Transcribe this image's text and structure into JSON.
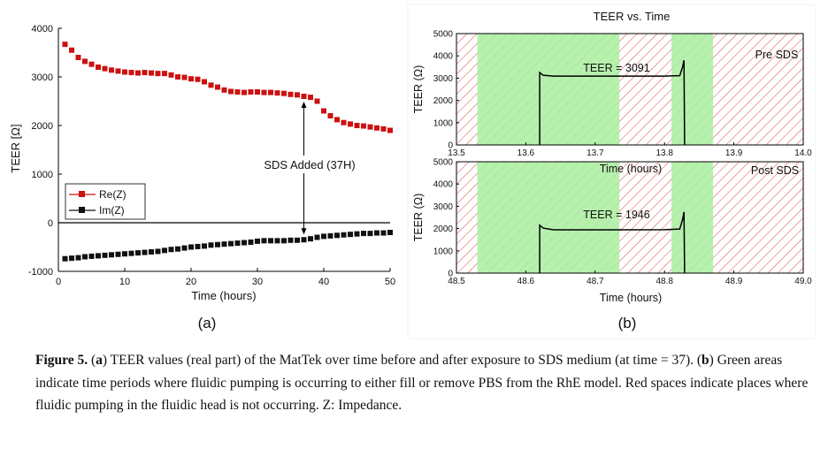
{
  "figure": {
    "panel_a_label": "(a)",
    "panel_b_label": "(b)"
  },
  "caption": {
    "label": "Figure 5.",
    "p1": " (",
    "a": "a",
    "p2": ") TEER values (real part) of the MatTek over time before and after exposure to SDS medium (at time = 37). (",
    "b": "b",
    "p3": ") Green areas indicate time periods where fluidic pumping is occurring to either fill or remove PBS from the RhE model. Red spaces indicate places where fluidic pumping in the fluidic head is not occurring. Z: Impedance."
  },
  "chart_data": [
    {
      "type": "scatter",
      "panel": "a",
      "title": "",
      "xlabel": "Time (hours)",
      "ylabel": "TEER [Ω]",
      "xlim": [
        0,
        50
      ],
      "ylim": [
        -1000,
        4000
      ],
      "xticks": [
        "0",
        "10",
        "20",
        "30",
        "40",
        "50"
      ],
      "yticks": [
        "-1000",
        "0",
        "1000",
        "2000",
        "3000",
        "4000"
      ],
      "annotation": "SDS Added (37H)",
      "annotation_x": 37,
      "series": [
        {
          "name": "Re(Z)",
          "color": "#cc1111",
          "points": [
            [
              1,
              3670
            ],
            [
              2,
              3550
            ],
            [
              3,
              3400
            ],
            [
              4,
              3320
            ],
            [
              5,
              3260
            ],
            [
              6,
              3200
            ],
            [
              7,
              3170
            ],
            [
              8,
              3140
            ],
            [
              9,
              3120
            ],
            [
              10,
              3100
            ],
            [
              11,
              3090
            ],
            [
              12,
              3080
            ],
            [
              13,
              3090
            ],
            [
              14,
              3080
            ],
            [
              15,
              3070
            ],
            [
              16,
              3070
            ],
            [
              17,
              3040
            ],
            [
              18,
              3000
            ],
            [
              19,
              2990
            ],
            [
              20,
              2960
            ],
            [
              21,
              2950
            ],
            [
              22,
              2900
            ],
            [
              23,
              2830
            ],
            [
              24,
              2790
            ],
            [
              25,
              2730
            ],
            [
              26,
              2700
            ],
            [
              27,
              2690
            ],
            [
              28,
              2680
            ],
            [
              29,
              2690
            ],
            [
              30,
              2690
            ],
            [
              31,
              2680
            ],
            [
              32,
              2680
            ],
            [
              33,
              2670
            ],
            [
              34,
              2660
            ],
            [
              35,
              2640
            ],
            [
              36,
              2630
            ],
            [
              37,
              2600
            ],
            [
              38,
              2580
            ],
            [
              39,
              2500
            ],
            [
              40,
              2300
            ],
            [
              41,
              2200
            ],
            [
              42,
              2120
            ],
            [
              43,
              2060
            ],
            [
              44,
              2030
            ],
            [
              45,
              2000
            ],
            [
              46,
              1990
            ],
            [
              47,
              1970
            ],
            [
              48,
              1950
            ],
            [
              49,
              1930
            ],
            [
              50,
              1900
            ]
          ]
        },
        {
          "name": "Im(Z)",
          "color": "#111111",
          "points": [
            [
              1,
              -740
            ],
            [
              2,
              -730
            ],
            [
              3,
              -720
            ],
            [
              4,
              -700
            ],
            [
              5,
              -690
            ],
            [
              6,
              -680
            ],
            [
              7,
              -670
            ],
            [
              8,
              -660
            ],
            [
              9,
              -650
            ],
            [
              10,
              -640
            ],
            [
              11,
              -630
            ],
            [
              12,
              -620
            ],
            [
              13,
              -610
            ],
            [
              14,
              -600
            ],
            [
              15,
              -590
            ],
            [
              16,
              -570
            ],
            [
              17,
              -550
            ],
            [
              18,
              -540
            ],
            [
              19,
              -520
            ],
            [
              20,
              -500
            ],
            [
              21,
              -490
            ],
            [
              22,
              -480
            ],
            [
              23,
              -460
            ],
            [
              24,
              -450
            ],
            [
              25,
              -440
            ],
            [
              26,
              -430
            ],
            [
              27,
              -420
            ],
            [
              28,
              -410
            ],
            [
              29,
              -400
            ],
            [
              30,
              -380
            ],
            [
              31,
              -370
            ],
            [
              32,
              -370
            ],
            [
              33,
              -370
            ],
            [
              34,
              -370
            ],
            [
              35,
              -360
            ],
            [
              36,
              -360
            ],
            [
              37,
              -350
            ],
            [
              38,
              -330
            ],
            [
              39,
              -300
            ],
            [
              40,
              -280
            ],
            [
              41,
              -270
            ],
            [
              42,
              -260
            ],
            [
              43,
              -250
            ],
            [
              44,
              -240
            ],
            [
              45,
              -230
            ],
            [
              46,
              -220
            ],
            [
              47,
              -220
            ],
            [
              48,
              -210
            ],
            [
              49,
              -210
            ],
            [
              50,
              -200
            ]
          ]
        }
      ]
    },
    {
      "type": "line",
      "panel": "b-top",
      "title": "TEER vs. Time",
      "xlabel": "Time (hours)",
      "ylabel": "TEER (Ω)",
      "label": "Pre SDS",
      "annotation": "TEER = 3091",
      "xlim": [
        13.5,
        14.0
      ],
      "ylim": [
        0,
        5000
      ],
      "xticks": [
        "13.5",
        "13.6",
        "13.7",
        "13.8",
        "13.9",
        "14.0"
      ],
      "yticks": [
        "0",
        "1000",
        "2000",
        "3000",
        "4000",
        "5000"
      ],
      "green_regions": [
        [
          13.53,
          13.735
        ],
        [
          13.81,
          13.87
        ]
      ],
      "points": [
        [
          13.62,
          0
        ],
        [
          13.62,
          3250
        ],
        [
          13.625,
          3130
        ],
        [
          13.64,
          3091
        ],
        [
          13.7,
          3091
        ],
        [
          13.76,
          3091
        ],
        [
          13.8,
          3091
        ],
        [
          13.822,
          3110
        ],
        [
          13.826,
          3500
        ],
        [
          13.828,
          3800
        ],
        [
          13.829,
          0
        ]
      ]
    },
    {
      "type": "line",
      "panel": "b-bottom",
      "xlabel": "Time (hours)",
      "ylabel": "TEER (Ω)",
      "label": "Post SDS",
      "annotation": "TEER = 1946",
      "xlim": [
        48.5,
        49.0
      ],
      "ylim": [
        0,
        5000
      ],
      "xticks": [
        "48.5",
        "48.6",
        "48.7",
        "48.8",
        "48.9",
        "49.0"
      ],
      "yticks": [
        "0",
        "1000",
        "2000",
        "3000",
        "4000",
        "5000"
      ],
      "green_regions": [
        [
          48.53,
          48.735
        ],
        [
          48.81,
          48.87
        ]
      ],
      "points": [
        [
          48.62,
          0
        ],
        [
          48.62,
          2150
        ],
        [
          48.625,
          2020
        ],
        [
          48.64,
          1946
        ],
        [
          48.7,
          1946
        ],
        [
          48.76,
          1946
        ],
        [
          48.8,
          1950
        ],
        [
          48.822,
          1980
        ],
        [
          48.826,
          2400
        ],
        [
          48.828,
          2750
        ],
        [
          48.829,
          0
        ]
      ]
    }
  ]
}
